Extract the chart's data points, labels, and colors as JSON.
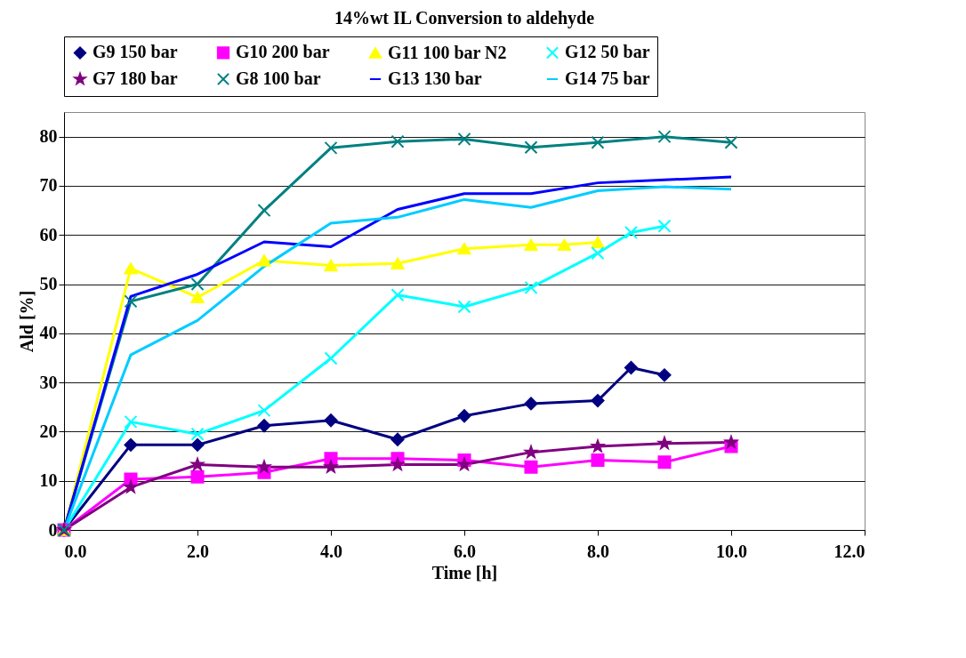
{
  "chart_data": {
    "type": "line",
    "title": "14%wt IL Conversion to aldehyde",
    "xlabel": "Time [h]",
    "ylabel": "Ald [%]",
    "xlim": [
      0,
      12
    ],
    "ylim": [
      0,
      85
    ],
    "xticks": [
      {
        "value": 0,
        "label": "0.0"
      },
      {
        "value": 2,
        "label": "2.0"
      },
      {
        "value": 4,
        "label": "4.0"
      },
      {
        "value": 6,
        "label": "6.0"
      },
      {
        "value": 8,
        "label": "8.0"
      },
      {
        "value": 10,
        "label": "10.0"
      },
      {
        "value": 12,
        "label": "12.0"
      }
    ],
    "yticks": [
      0,
      10,
      20,
      30,
      40,
      50,
      60,
      70,
      80
    ],
    "grid": "y",
    "legend": "top",
    "series": [
      {
        "name": "G9 150 bar",
        "color": "#000080",
        "marker": "diamond",
        "x": [
          0,
          1,
          2,
          3,
          4,
          5,
          6,
          7,
          8,
          8.5,
          9
        ],
        "values": [
          0,
          17.3,
          17.3,
          21.2,
          22.3,
          18.4,
          23.2,
          25.7,
          26.3,
          33,
          31.5
        ]
      },
      {
        "name": "G10 200 bar",
        "color": "#ff00ff",
        "marker": "square",
        "x": [
          0,
          1,
          2,
          3,
          4,
          5,
          6,
          7,
          8,
          9,
          10
        ],
        "values": [
          0,
          10.3,
          10.8,
          11.7,
          14.5,
          14.5,
          14.2,
          12.8,
          14.2,
          13.8,
          17
        ]
      },
      {
        "name": "G11 100 bar N2",
        "color": "#ffff00",
        "marker": "triangle",
        "x": [
          0,
          1,
          2,
          3,
          4,
          5,
          6,
          7,
          7.5,
          8
        ],
        "values": [
          0,
          53.2,
          47.3,
          54.8,
          53.8,
          54.2,
          57.2,
          58,
          58,
          58.5
        ]
      },
      {
        "name": "G12 50 bar",
        "color": "#00ffff",
        "marker": "cross",
        "x": [
          0,
          1,
          2,
          3,
          4,
          5,
          6,
          7,
          8,
          8.5,
          9
        ],
        "values": [
          0,
          22,
          19.5,
          24.3,
          34.9,
          47.8,
          45.4,
          49.3,
          56.3,
          60.5,
          61.8
        ]
      },
      {
        "name": "G7 180 bar",
        "color": "#800080",
        "marker": "star",
        "x": [
          0,
          1,
          2,
          3,
          4,
          5,
          6,
          7,
          8,
          9,
          10
        ],
        "values": [
          0,
          8.7,
          13.3,
          12.8,
          12.8,
          13.3,
          13.3,
          15.8,
          17,
          17.6,
          17.8
        ]
      },
      {
        "name": "G8 100 bar",
        "color": "#008080",
        "marker": "cross",
        "x": [
          0,
          1,
          2,
          3,
          4,
          5,
          6,
          7,
          8,
          9,
          10
        ],
        "values": [
          0,
          46.5,
          50,
          65,
          77.7,
          79,
          79.5,
          77.8,
          78.8,
          80,
          78.8
        ]
      },
      {
        "name": "G13 130 bar",
        "color": "#0000ff",
        "marker": "none",
        "x": [
          0,
          1,
          2,
          3,
          4,
          5,
          6,
          7,
          8,
          9,
          10
        ],
        "values": [
          0,
          47.5,
          52,
          58.6,
          57.6,
          65.2,
          68.4,
          68.4,
          70.6,
          71.2,
          71.8
        ]
      },
      {
        "name": "G14 75 bar",
        "color": "#00ccff",
        "marker": "none",
        "x": [
          0,
          1,
          2,
          3,
          4,
          5,
          6,
          7,
          8,
          9,
          10
        ],
        "values": [
          0,
          35.6,
          42.6,
          53.6,
          62.4,
          63.6,
          67.2,
          65.6,
          69,
          69.8,
          69.3
        ]
      }
    ]
  }
}
